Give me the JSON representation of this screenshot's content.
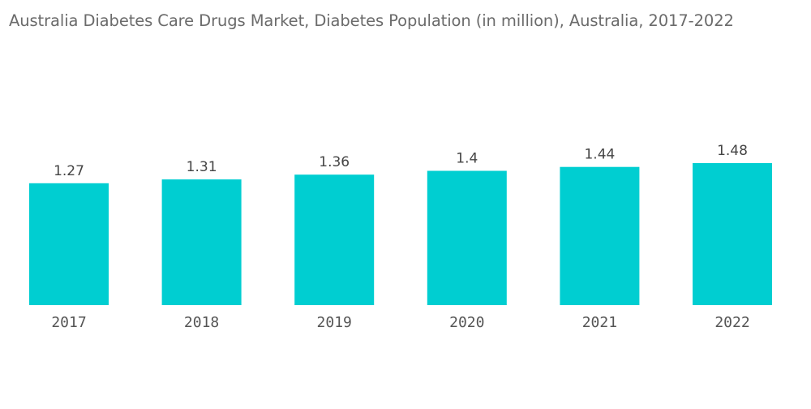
{
  "chart_data": {
    "type": "bar",
    "title": "Australia Diabetes Care Drugs Market, Diabetes Population (in million), Australia, 2017-2022",
    "xlabel": "",
    "ylabel": "",
    "categories": [
      "2017",
      "2018",
      "2019",
      "2020",
      "2021",
      "2022"
    ],
    "values": [
      1.27,
      1.31,
      1.36,
      1.4,
      1.44,
      1.48
    ],
    "data_labels": [
      "1.27",
      "1.31",
      "1.36",
      "1.4",
      "1.44",
      "1.48"
    ],
    "ylim": [
      0,
      1.48
    ],
    "grid": false,
    "legend": "none",
    "colors": {
      "bar": "#00ced1",
      "title": "#6b6b6b",
      "data_label": "#444444",
      "tick_label": "#555555"
    }
  }
}
